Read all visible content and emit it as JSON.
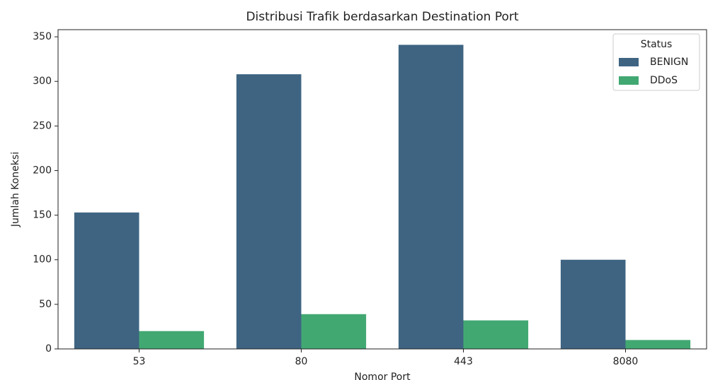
{
  "chart_data": {
    "type": "bar",
    "title": "Distribusi Trafik berdasarkan Destination Port",
    "x_label": "Nomor Port",
    "y_label": "Jumlah Koneksi",
    "categories": [
      "53",
      "80",
      "443",
      "8080"
    ],
    "series": [
      {
        "name": "BENIGN",
        "color": "#3e6482",
        "values": [
          153,
          308,
          341,
          100
        ]
      },
      {
        "name": "DDoS",
        "color": "#42a872",
        "values": [
          20,
          39,
          32,
          10
        ]
      }
    ],
    "ylim": [
      0,
      358
    ],
    "yticks": [
      0,
      50,
      100,
      150,
      200,
      250,
      300,
      350
    ],
    "legend_title": "Status",
    "legend": "upper right",
    "grid": false
  }
}
